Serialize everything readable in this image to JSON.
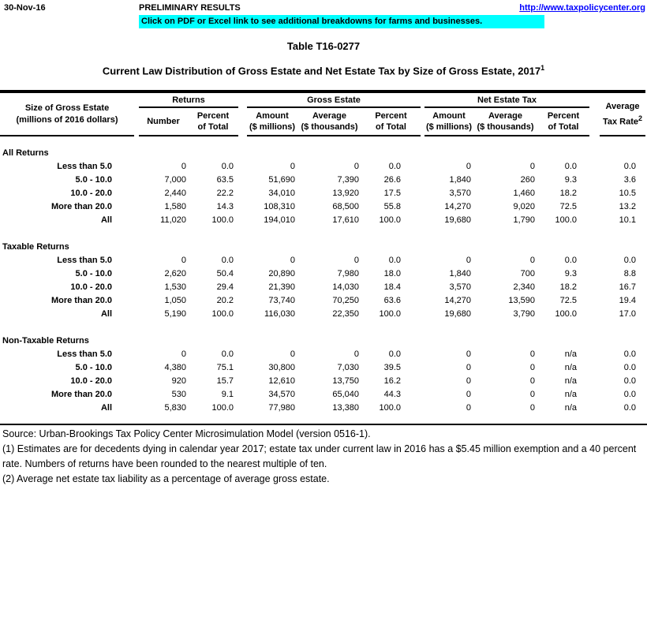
{
  "topbar": {
    "date": "30-Nov-16",
    "status": "PRELIMINARY RESULTS",
    "link": "http://www.taxpolicycenter.org",
    "banner": "Click on PDF or Excel link to see additional breakdowns for farms and businesses.",
    "banner_color": "#00FFFF",
    "link_color": "#0000FF"
  },
  "title": "Table T16-0277",
  "subtitle": "Current Law Distribution of Gross Estate and Net Estate Tax by Size of Gross Estate, 2017",
  "subtitle_sup": "1",
  "table": {
    "row_header_line1": "Size of Gross Estate",
    "row_header_line2": "(millions of 2016 dollars)",
    "groups": {
      "returns": "Returns",
      "gross_estate": "Gross Estate",
      "net_estate_tax": "Net Estate Tax"
    },
    "subheaders": {
      "number": "Number",
      "percent_l1": "Percent",
      "percent_l2": "of Total",
      "amount_l1": "Amount",
      "amount_l2": "($ millions)",
      "average_l1": "Average",
      "average_l2": "($ thousands)",
      "rate_l1": "Average",
      "rate_l2": "Tax Rate",
      "rate_sup": "2"
    },
    "sections": [
      {
        "label": "All Returns",
        "rows": [
          {
            "label": "Less than 5.0",
            "values": [
              "0",
              "0.0",
              "0",
              "0",
              "0.0",
              "0",
              "0",
              "0.0",
              "0.0"
            ]
          },
          {
            "label": "5.0 - 10.0",
            "values": [
              "7,000",
              "63.5",
              "51,690",
              "7,390",
              "26.6",
              "1,840",
              "260",
              "9.3",
              "3.6"
            ]
          },
          {
            "label": "10.0 - 20.0",
            "values": [
              "2,440",
              "22.2",
              "34,010",
              "13,920",
              "17.5",
              "3,570",
              "1,460",
              "18.2",
              "10.5"
            ]
          },
          {
            "label": "More than 20.0",
            "values": [
              "1,580",
              "14.3",
              "108,310",
              "68,500",
              "55.8",
              "14,270",
              "9,020",
              "72.5",
              "13.2"
            ]
          },
          {
            "label": "All",
            "values": [
              "11,020",
              "100.0",
              "194,010",
              "17,610",
              "100.0",
              "19,680",
              "1,790",
              "100.0",
              "10.1"
            ]
          }
        ]
      },
      {
        "label": "Taxable Returns",
        "rows": [
          {
            "label": "Less than 5.0",
            "values": [
              "0",
              "0.0",
              "0",
              "0",
              "0.0",
              "0",
              "0",
              "0.0",
              "0.0"
            ]
          },
          {
            "label": "5.0 - 10.0",
            "values": [
              "2,620",
              "50.4",
              "20,890",
              "7,980",
              "18.0",
              "1,840",
              "700",
              "9.3",
              "8.8"
            ]
          },
          {
            "label": "10.0 - 20.0",
            "values": [
              "1,530",
              "29.4",
              "21,390",
              "14,030",
              "18.4",
              "3,570",
              "2,340",
              "18.2",
              "16.7"
            ]
          },
          {
            "label": "More than 20.0",
            "values": [
              "1,050",
              "20.2",
              "73,740",
              "70,250",
              "63.6",
              "14,270",
              "13,590",
              "72.5",
              "19.4"
            ]
          },
          {
            "label": "All",
            "values": [
              "5,190",
              "100.0",
              "116,030",
              "22,350",
              "100.0",
              "19,680",
              "3,790",
              "100.0",
              "17.0"
            ]
          }
        ]
      },
      {
        "label": "Non-Taxable Returns",
        "rows": [
          {
            "label": "Less than 5.0",
            "values": [
              "0",
              "0.0",
              "0",
              "0",
              "0.0",
              "0",
              "0",
              "n/a",
              "0.0"
            ]
          },
          {
            "label": "5.0 - 10.0",
            "values": [
              "4,380",
              "75.1",
              "30,800",
              "7,030",
              "39.5",
              "0",
              "0",
              "n/a",
              "0.0"
            ]
          },
          {
            "label": "10.0 - 20.0",
            "values": [
              "920",
              "15.7",
              "12,610",
              "13,750",
              "16.2",
              "0",
              "0",
              "n/a",
              "0.0"
            ]
          },
          {
            "label": "More than 20.0",
            "values": [
              "530",
              "9.1",
              "34,570",
              "65,040",
              "44.3",
              "0",
              "0",
              "n/a",
              "0.0"
            ]
          },
          {
            "label": "All",
            "values": [
              "5,830",
              "100.0",
              "77,980",
              "13,380",
              "100.0",
              "0",
              "0",
              "n/a",
              "0.0"
            ]
          }
        ]
      }
    ]
  },
  "footer": {
    "source": "Source: Urban-Brookings Tax Policy Center Microsimulation Model (version 0516-1).",
    "note1_line1": "(1) Estimates are for decedents dying in calendar year 2017; estate tax under current law in 2016 has a $5.45 million exemption and a 40 percent",
    "note1_line2": "rate. Numbers of returns have been rounded to the nearest multiple of ten.",
    "note2": "(2) Average net estate tax liability as a percentage of average gross estate."
  }
}
